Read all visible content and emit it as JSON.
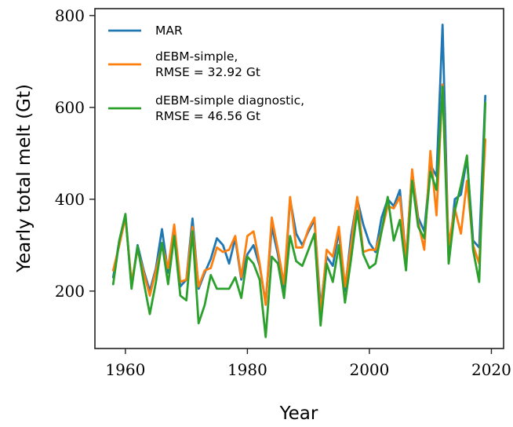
{
  "chart_data": {
    "type": "line",
    "xlabel": "Year",
    "ylabel": "Yearly total melt (Gt)",
    "xlim": [
      1955,
      2022
    ],
    "ylim": [
      75,
      815
    ],
    "xticks": [
      1960,
      1980,
      2000,
      2020
    ],
    "yticks": [
      200,
      400,
      600,
      800
    ],
    "grid": false,
    "legend_position": "top-left",
    "x": [
      1958,
      1959,
      1960,
      1961,
      1962,
      1963,
      1964,
      1965,
      1966,
      1967,
      1968,
      1969,
      1970,
      1971,
      1972,
      1973,
      1974,
      1975,
      1976,
      1977,
      1978,
      1979,
      1980,
      1981,
      1982,
      1983,
      1984,
      1985,
      1986,
      1987,
      1988,
      1989,
      1990,
      1991,
      1992,
      1993,
      1994,
      1995,
      1996,
      1997,
      1998,
      1999,
      2000,
      2001,
      2002,
      2003,
      2004,
      2005,
      2006,
      2007,
      2008,
      2009,
      2010,
      2011,
      2012,
      2013,
      2014,
      2015,
      2016,
      2017,
      2018,
      2019
    ],
    "series": [
      {
        "name": "MAR",
        "color": "#1f77b4",
        "values": [
          230,
          310,
          365,
          210,
          300,
          245,
          200,
          250,
          335,
          240,
          340,
          210,
          225,
          358,
          205,
          240,
          270,
          315,
          300,
          260,
          315,
          225,
          280,
          300,
          255,
          175,
          340,
          280,
          200,
          400,
          325,
          300,
          330,
          355,
          165,
          275,
          255,
          330,
          200,
          320,
          400,
          345,
          305,
          285,
          360,
          400,
          385,
          420,
          270,
          460,
          360,
          330,
          475,
          450,
          780,
          270,
          400,
          410,
          490,
          310,
          295,
          625
        ]
      },
      {
        "name": "dEBM-simple,\nRMSE = 32.92 Gt",
        "color": "#ff7f0e",
        "values": [
          245,
          300,
          360,
          220,
          290,
          240,
          190,
          245,
          300,
          250,
          345,
          220,
          225,
          340,
          210,
          245,
          250,
          295,
          285,
          290,
          320,
          230,
          320,
          330,
          260,
          170,
          360,
          290,
          215,
          405,
          295,
          295,
          335,
          360,
          150,
          290,
          275,
          340,
          210,
          300,
          405,
          285,
          290,
          290,
          330,
          385,
          380,
          405,
          270,
          465,
          350,
          290,
          505,
          365,
          650,
          300,
          380,
          325,
          440,
          300,
          260,
          530
        ]
      },
      {
        "name": "dEBM-simple diagnostic,\nRMSE = 46.56 Gt",
        "color": "#2ca02c",
        "values": [
          215,
          310,
          368,
          205,
          298,
          220,
          150,
          220,
          305,
          215,
          320,
          190,
          180,
          330,
          130,
          170,
          235,
          205,
          205,
          205,
          230,
          185,
          275,
          260,
          225,
          100,
          275,
          260,
          185,
          320,
          265,
          255,
          290,
          325,
          125,
          260,
          220,
          300,
          175,
          270,
          375,
          280,
          250,
          260,
          330,
          405,
          310,
          355,
          245,
          440,
          340,
          315,
          460,
          420,
          645,
          260,
          375,
          430,
          495,
          290,
          220,
          610
        ]
      }
    ]
  }
}
